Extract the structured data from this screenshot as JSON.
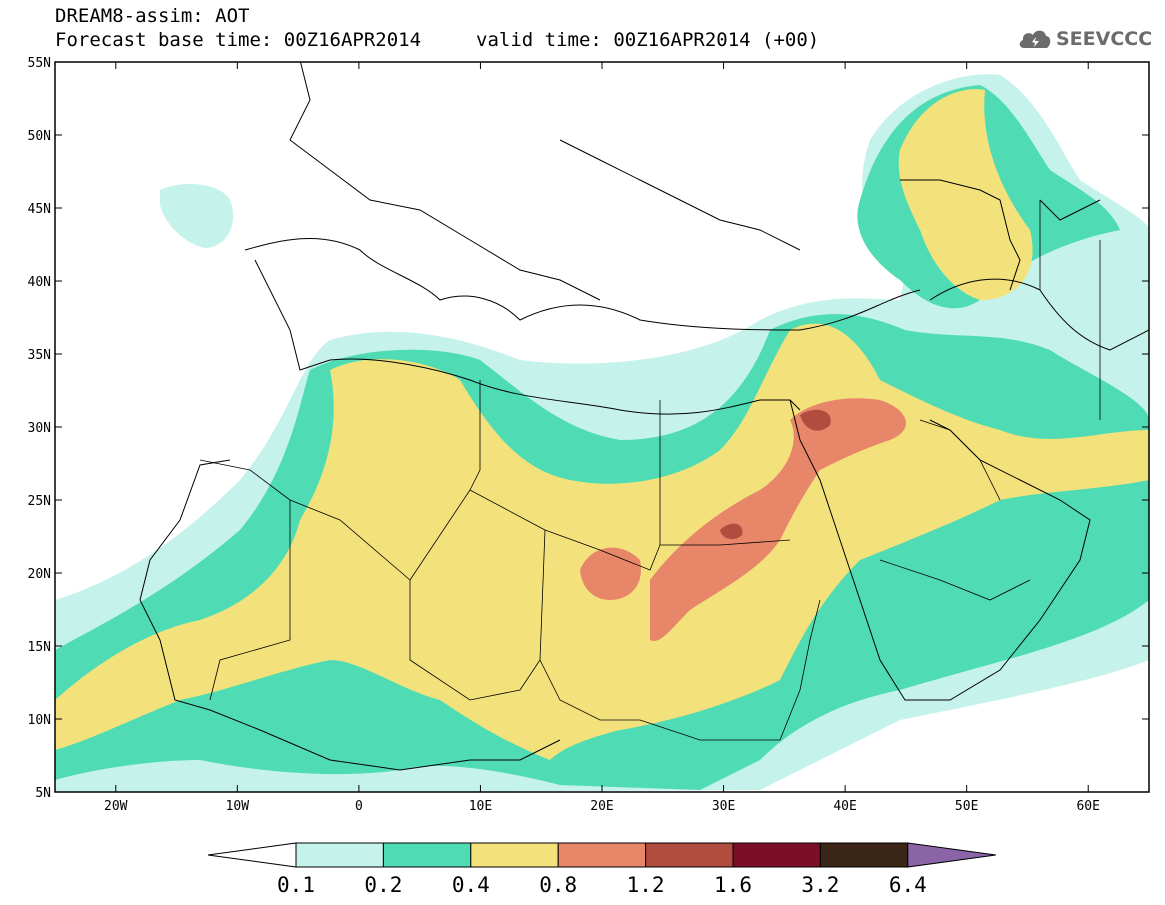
{
  "header": {
    "title": "DREAM8-assim: AOT",
    "base_time": "Forecast base time: 00Z16APR2014",
    "valid_time": "valid time: 00Z16APR2014 (+00)"
  },
  "logo": {
    "icon": "cloud-icon",
    "text": "SEEVCCC"
  },
  "map": {
    "lon_range": [
      -25,
      65
    ],
    "lat_range": [
      5,
      55
    ],
    "lat_ticks": [
      "5N",
      "10N",
      "15N",
      "20N",
      "25N",
      "30N",
      "35N",
      "40N",
      "45N",
      "50N",
      "55N"
    ],
    "lon_ticks": [
      "20W",
      "10W",
      "0",
      "10E",
      "20E",
      "30E",
      "40E",
      "50E",
      "60E"
    ]
  },
  "colorbar": {
    "levels": [
      "0.1",
      "0.2",
      "0.4",
      "0.8",
      "1.2",
      "1.6",
      "3.2",
      "6.4"
    ],
    "colors": [
      "#c6f2ec",
      "#4fdcb4",
      "#f3e27b",
      "#e8866a",
      "#b14d3e",
      "#7b0f2a",
      "#3b2516",
      "#8a64a6"
    ]
  }
}
